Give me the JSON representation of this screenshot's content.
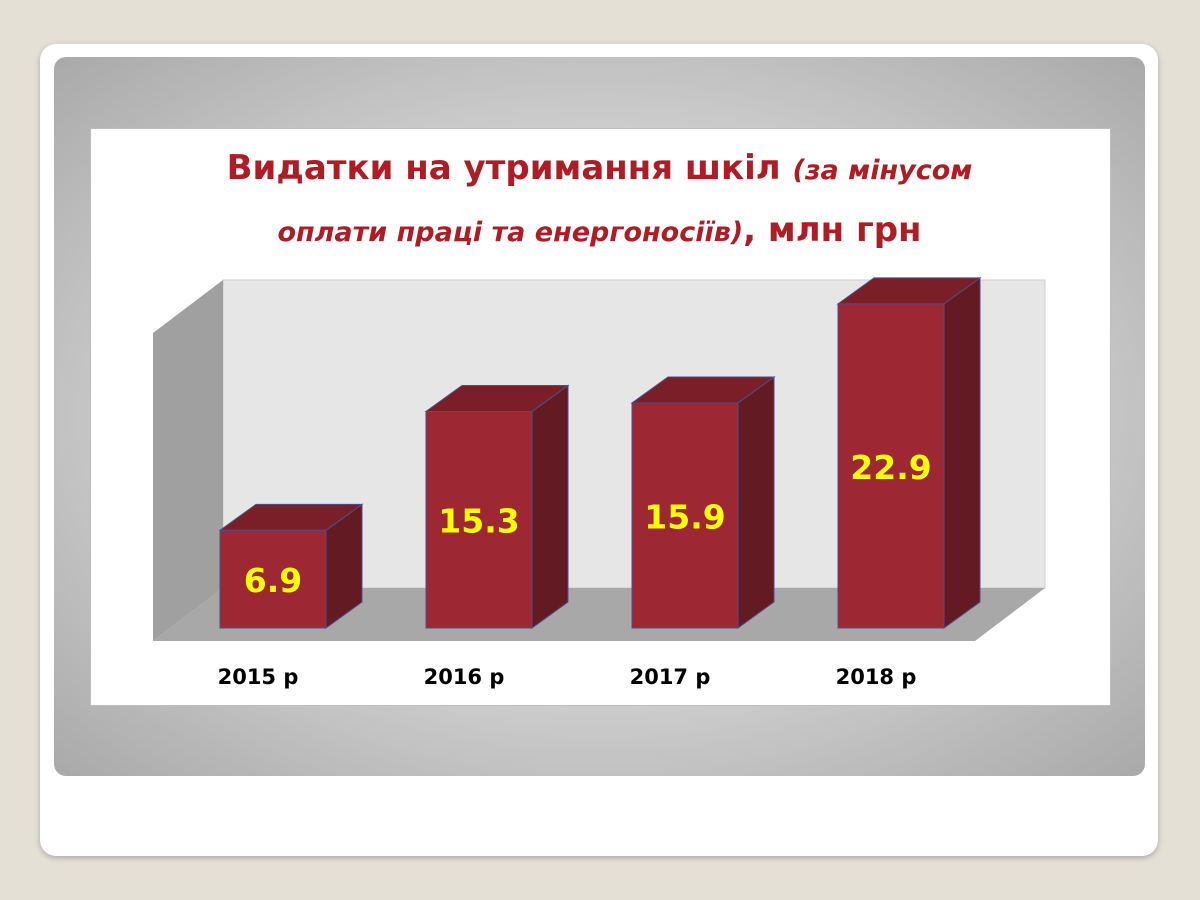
{
  "chart_data": {
    "type": "bar",
    "title_main": "Видатки на утримання шкіл ",
    "title_italic1": "(за мінусом",
    "title_italic2": "оплати праці та енергоносіїв)",
    "title_tail": ", млн грн",
    "categories": [
      "2015 р",
      "2016 р",
      "2017 р",
      "2018 р"
    ],
    "values": [
      6.9,
      15.3,
      15.9,
      22.9
    ],
    "value_labels": [
      "6.9",
      "15.3",
      "15.9",
      "22.9"
    ],
    "ylim": [
      0,
      26
    ],
    "grid": false,
    "colors": {
      "bar_front": "#9e2734",
      "bar_top": "#7a1e28",
      "bar_side": "#641a22",
      "bar_edge": "#4b4f8a",
      "value_label": "#ffff00",
      "title": "#b01c24",
      "back_wall": "#e6e6e6",
      "left_wall": "#a0a0a0",
      "floor": "#a8a8a8"
    }
  }
}
